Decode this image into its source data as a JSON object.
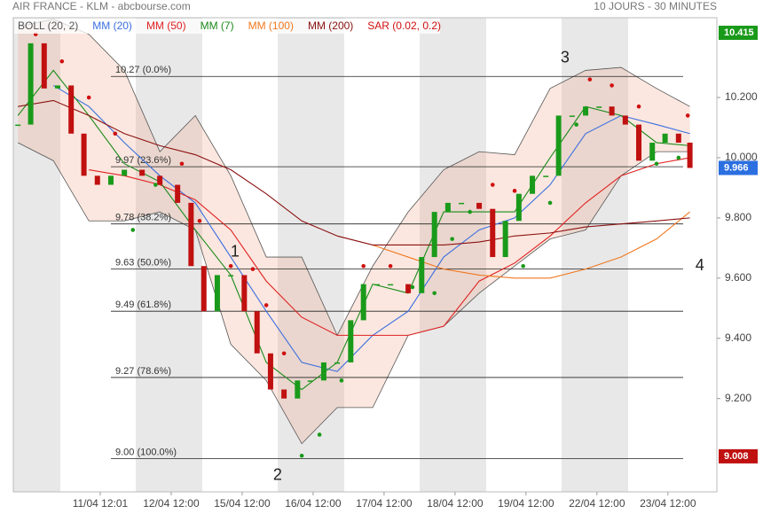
{
  "chart_data": {
    "type": "candlestick",
    "title": "AIR FRANCE - KLM - abcbourse.com",
    "subtitle": "10 JOURS - 30 MINUTES",
    "xlim": [
      -1.225,
      8.69
    ],
    "ylim": [
      8.89,
      10.465
    ],
    "xticks": [
      {
        "value": 0,
        "label": "11/04 12:01"
      },
      {
        "value": 1,
        "label": "12/04 12:00"
      },
      {
        "value": 2,
        "label": "15/04 12:00"
      },
      {
        "value": 3,
        "label": "16/04 12:00"
      },
      {
        "value": 4,
        "label": "17/04 12:00"
      },
      {
        "value": 5,
        "label": "18/04 12:00"
      },
      {
        "value": 6,
        "label": "19/04 12:00"
      },
      {
        "value": 7,
        "label": "22/04 12:00"
      },
      {
        "value": 8,
        "label": "23/04 12:00"
      }
    ],
    "yticks": [
      {
        "value": 10.2,
        "label": "10.200"
      },
      {
        "value": 10.0,
        "label": "10.000"
      },
      {
        "value": 9.8,
        "label": "9.800"
      },
      {
        "value": 9.6,
        "label": "9.600"
      },
      {
        "value": 9.4,
        "label": "9.400"
      },
      {
        "value": 9.2,
        "label": "9.200"
      }
    ],
    "price": {
      "x": [
        -1.16,
        -0.98,
        -0.79,
        -0.6,
        -0.41,
        -0.23,
        -0.04,
        0.15,
        0.34,
        0.59,
        0.84,
        1.09,
        1.28,
        1.46,
        1.65,
        1.84,
        2.03,
        2.21,
        2.4,
        2.59,
        2.78,
        2.96,
        3.15,
        3.34,
        3.53,
        3.71,
        3.9,
        4.09,
        4.34,
        4.53,
        4.71,
        4.9,
        5.09,
        5.34,
        5.53,
        5.71,
        5.9,
        6.09,
        6.28,
        6.46,
        6.65,
        6.84,
        7.03,
        7.21,
        7.4,
        7.59,
        7.78,
        7.96,
        8.15,
        8.31
      ],
      "values": [
        10.11,
        10.38,
        10.23,
        10.24,
        10.08,
        9.94,
        9.91,
        9.94,
        9.96,
        9.94,
        9.91,
        9.85,
        9.64,
        9.49,
        9.61,
        9.61,
        9.49,
        9.35,
        9.23,
        9.2,
        9.26,
        9.26,
        9.32,
        9.32,
        9.46,
        9.58,
        9.58,
        9.58,
        9.55,
        9.67,
        9.82,
        9.85,
        9.85,
        9.83,
        9.67,
        9.79,
        9.88,
        9.94,
        9.94,
        10.14,
        10.14,
        10.17,
        10.17,
        10.14,
        10.11,
        9.99,
        10.05,
        10.08,
        10.05,
        9.966
      ]
    },
    "ind_x": [
      -1.16,
      -0.66,
      -0.16,
      0.34,
      0.84,
      1.34,
      1.84,
      2.34,
      2.84,
      3.34,
      3.84,
      4.34,
      4.84,
      5.34,
      5.84,
      6.34,
      6.84,
      7.34,
      7.84,
      8.31
    ],
    "bollinger": {
      "name": "BOLL (20, 2)",
      "color": "#555555",
      "upper": [
        10.435,
        10.46,
        10.41,
        10.29,
        10.02,
        10.14,
        9.94,
        9.67,
        9.67,
        9.41,
        9.64,
        9.82,
        9.96,
        10.02,
        10.01,
        10.23,
        10.29,
        10.3,
        10.23,
        10.17
      ],
      "lower": [
        10.05,
        9.99,
        9.79,
        9.79,
        9.82,
        9.76,
        9.38,
        9.26,
        9.05,
        9.17,
        9.17,
        9.41,
        9.44,
        9.55,
        9.64,
        9.73,
        9.76,
        9.94,
        10.02,
        10.02
      ]
    },
    "series": [
      {
        "name": "MM (20)",
        "color": "#3b6fe0",
        "values": [
          null,
          10.24,
          10.17,
          10.05,
          9.94,
          9.85,
          9.67,
          9.49,
          9.32,
          9.29,
          9.41,
          9.49,
          9.67,
          9.76,
          9.8,
          9.91,
          10.08,
          10.14,
          10.11,
          10.08
        ]
      },
      {
        "name": "MM (50)",
        "color": "#e02020",
        "values": [
          null,
          null,
          9.96,
          9.94,
          9.91,
          9.86,
          9.76,
          9.59,
          9.47,
          9.41,
          9.41,
          9.41,
          9.44,
          9.59,
          9.65,
          9.74,
          9.85,
          9.94,
          9.98,
          10.0
        ]
      },
      {
        "name": "MM (7)",
        "color": "#1a8a1a",
        "values": [
          10.14,
          10.29,
          10.14,
          9.98,
          9.92,
          9.76,
          9.61,
          9.32,
          9.23,
          9.32,
          9.58,
          9.55,
          9.82,
          9.82,
          9.82,
          10.0,
          10.17,
          10.14,
          10.05,
          10.04
        ]
      },
      {
        "name": "MM (100)",
        "color": "#f07820",
        "values": [
          null,
          null,
          null,
          null,
          null,
          null,
          null,
          null,
          null,
          null,
          9.71,
          9.67,
          9.63,
          9.61,
          9.6,
          9.6,
          9.63,
          9.67,
          9.73,
          9.82
        ]
      },
      {
        "name": "MM (200)",
        "color": "#8b1010",
        "values": [
          10.17,
          10.19,
          10.14,
          10.08,
          10.04,
          10.01,
          9.96,
          9.88,
          9.79,
          9.74,
          9.71,
          9.71,
          9.71,
          9.72,
          9.74,
          9.75,
          9.77,
          9.78,
          9.79,
          9.8
        ]
      }
    ],
    "sar": {
      "name": "SAR (0.02, 0.2)",
      "color": "#d01010",
      "color_below": "#1a9a1a",
      "x": [
        -0.91,
        -0.54,
        -0.16,
        0.21,
        0.46,
        0.78,
        1.15,
        1.4,
        1.84,
        2.15,
        2.34,
        2.59,
        2.84,
        3.09,
        3.4,
        3.71,
        4.09,
        4.4,
        4.71,
        4.96,
        5.21,
        5.53,
        5.84,
        5.96,
        6.34,
        6.71,
        6.9,
        7.21,
        7.59,
        7.84,
        8.15,
        8.28
      ],
      "values": [
        10.41,
        10.32,
        10.2,
        10.08,
        9.76,
        9.91,
        9.98,
        9.79,
        9.64,
        9.63,
        9.51,
        9.35,
        9.01,
        9.08,
        9.26,
        9.64,
        9.64,
        9.57,
        9.55,
        9.73,
        9.82,
        9.91,
        9.89,
        9.64,
        9.85,
        10.11,
        10.26,
        10.24,
        10.17,
        9.98,
        10.0,
        10.14
      ]
    },
    "fibonacci": [
      {
        "value": 10.27,
        "label": "10.27  (0.0%)"
      },
      {
        "value": 9.97,
        "label": "9.97  (23.6%)"
      },
      {
        "value": 9.78,
        "label": "9.78  (38.2%)"
      },
      {
        "value": 9.63,
        "label": "9.63  (50.0%)"
      },
      {
        "value": 9.49,
        "label": "9.49  (61.8%)"
      },
      {
        "value": 9.27,
        "label": "9.27  (78.6%)"
      },
      {
        "value": 9.0,
        "label": "9.00  (100.0%)"
      }
    ],
    "annotations": [
      {
        "text": "1",
        "x": 1.9,
        "y": 9.685
      },
      {
        "text": "2",
        "x": 2.5,
        "y": 8.944
      },
      {
        "text": "3",
        "x": 6.55,
        "y": 10.33
      },
      {
        "text": "4",
        "x": 8.45,
        "y": 9.64
      }
    ],
    "price_labels": [
      {
        "value": 10.415,
        "label": "10.415",
        "color": "#1a9a1a"
      },
      {
        "value": 9.966,
        "label": "9.966",
        "color": "#2b6fe0"
      },
      {
        "value": 9.008,
        "label": "9.008",
        "color": "#c01010"
      }
    ]
  }
}
